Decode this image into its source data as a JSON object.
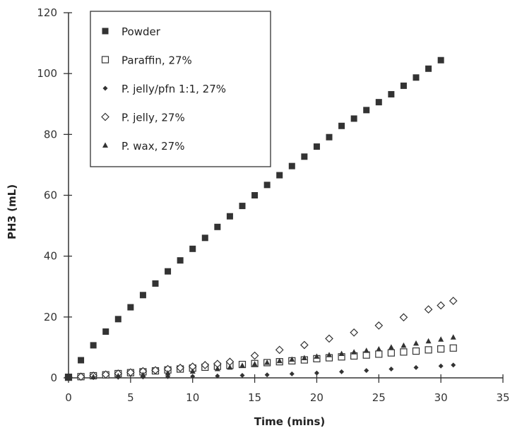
{
  "chart_data": {
    "type": "scatter",
    "xlabel": "Time (mins)",
    "ylabel": "PH3 (mL)",
    "xlim": [
      0,
      35
    ],
    "ylim": [
      0,
      120
    ],
    "x_ticks": [
      0,
      5,
      10,
      15,
      20,
      25,
      30,
      35
    ],
    "y_ticks": [
      0,
      20,
      40,
      60,
      80,
      100,
      120
    ],
    "grid": false,
    "legend_position": "top-left",
    "series": [
      {
        "name": "Powder",
        "marker": "filled-square",
        "color": "#333333",
        "x": [
          0,
          1,
          2,
          3,
          4,
          5,
          6,
          7,
          8,
          9,
          10,
          11,
          12,
          13,
          14,
          15,
          16,
          17,
          18,
          19,
          20,
          21,
          22,
          23,
          24,
          25,
          26,
          27,
          28,
          29,
          30
        ],
        "y": [
          0.3,
          5.8,
          10.7,
          15.2,
          19.3,
          23.2,
          27.2,
          31,
          35,
          38.6,
          42.4,
          46,
          49.6,
          53.1,
          56.5,
          60,
          63.4,
          66.6,
          69.6,
          72.7,
          76,
          79.1,
          82.8,
          85.2,
          88,
          90.6,
          93.2,
          96,
          98.7,
          101.6,
          104.4
        ]
      },
      {
        "name": "Paraffin, 27%",
        "marker": "open-square",
        "color": "#333333",
        "x": [
          0,
          1,
          2,
          3,
          4,
          5,
          6,
          7,
          8,
          9,
          10,
          11,
          12,
          13,
          14,
          15,
          16,
          17,
          18,
          19,
          20,
          21,
          22,
          23,
          24,
          25,
          26,
          27,
          28,
          29,
          30,
          31
        ],
        "y": [
          0.2,
          0.4,
          0.7,
          1,
          1.4,
          1.7,
          2,
          2.3,
          2.6,
          2.9,
          3.2,
          3.5,
          3.8,
          4.1,
          4.4,
          4.7,
          5,
          5.3,
          5.6,
          5.9,
          6.3,
          6.6,
          6.9,
          7.2,
          7.5,
          7.8,
          8.2,
          8.5,
          8.8,
          9.2,
          9.5,
          9.8
        ]
      },
      {
        "name": "P. jelly/pfn 1:1, 27%",
        "marker": "filled-diamond",
        "color": "#333333",
        "x": [
          0,
          2,
          4,
          6,
          8,
          10,
          12,
          14,
          16,
          18,
          20,
          22,
          24,
          26,
          28,
          30,
          31
        ],
        "y": [
          0,
          0.1,
          0.2,
          0.3,
          0.4,
          0.5,
          0.6,
          0.8,
          1,
          1.3,
          1.6,
          2,
          2.4,
          2.9,
          3.4,
          3.9,
          4.2
        ]
      },
      {
        "name": "P. jelly, 27%",
        "marker": "open-diamond",
        "color": "#333333",
        "x": [
          0,
          1,
          2,
          3,
          4,
          5,
          6,
          7,
          8,
          9,
          10,
          11,
          12,
          13,
          15,
          17,
          19,
          21,
          23,
          25,
          27,
          29,
          30,
          31
        ],
        "y": [
          0.2,
          0.4,
          0.7,
          1.1,
          1.4,
          1.8,
          2.2,
          2.5,
          2.9,
          3.3,
          3.7,
          4.2,
          4.6,
          5.3,
          7.3,
          9.2,
          10.8,
          12.9,
          14.9,
          17.2,
          19.9,
          22.5,
          23.8,
          25.3
        ]
      },
      {
        "name": "P. wax, 27%",
        "marker": "filled-triangle",
        "color": "#333333",
        "x": [
          0,
          2,
          4,
          6,
          8,
          10,
          12,
          13,
          14,
          15,
          16,
          17,
          18,
          19,
          20,
          21,
          22,
          23,
          24,
          25,
          26,
          27,
          28,
          29,
          30,
          31
        ],
        "y": [
          0,
          0.3,
          0.6,
          1,
          1.5,
          2.1,
          2.9,
          3.4,
          4,
          4.5,
          5,
          5.5,
          6,
          6.5,
          7,
          7.5,
          7.9,
          8.4,
          8.9,
          9.4,
          10,
          10.6,
          11.3,
          12,
          12.6,
          13.3
        ]
      }
    ]
  }
}
